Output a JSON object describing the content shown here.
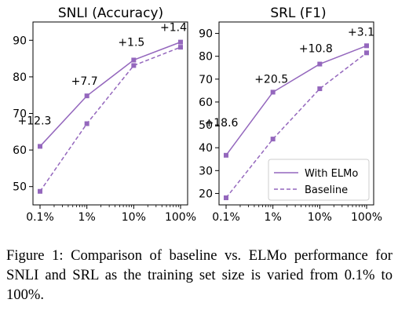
{
  "chart_data": [
    {
      "type": "line",
      "title": "SNLI (Accuracy)",
      "xlabel": "",
      "ylabel": "",
      "x_scale": "log",
      "x": [
        0.1,
        1,
        10,
        100
      ],
      "xticklabels": [
        "0.1%",
        "1%",
        "10%",
        "100%"
      ],
      "ylim": [
        45,
        95
      ],
      "yticks": [
        50,
        60,
        70,
        80,
        90
      ],
      "series": [
        {
          "name": "With ELMo",
          "style": "solid",
          "values": [
            61.0,
            74.8,
            84.6,
            89.5
          ]
        },
        {
          "name": "Baseline",
          "style": "dashed",
          "values": [
            48.7,
            67.2,
            83.1,
            88.1
          ]
        }
      ],
      "annotations": [
        "+12.3",
        "+7.7",
        "+1.5",
        "+1.4"
      ],
      "color": "#9467bd",
      "grid": false
    },
    {
      "type": "line",
      "title": "SRL (F1)",
      "xlabel": "",
      "ylabel": "",
      "x_scale": "log",
      "x": [
        0.1,
        1,
        10,
        100
      ],
      "xticklabels": [
        "0.1%",
        "1%",
        "10%",
        "100%"
      ],
      "ylim": [
        15,
        95
      ],
      "yticks": [
        20,
        30,
        40,
        50,
        60,
        70,
        80,
        90
      ],
      "series": [
        {
          "name": "With ELMo",
          "style": "solid",
          "values": [
            36.7,
            64.3,
            76.6,
            84.6
          ]
        },
        {
          "name": "Baseline",
          "style": "dashed",
          "values": [
            18.1,
            43.8,
            65.8,
            81.5
          ]
        }
      ],
      "annotations": [
        "+18.6",
        "+20.5",
        "+10.8",
        "+3.1"
      ],
      "legend": {
        "position": "bottom-right",
        "entries": [
          "With ELMo",
          "Baseline"
        ]
      },
      "color": "#9467bd",
      "grid": false
    }
  ],
  "caption": "Figure 1: Comparison of baseline vs. ELMo performance for SNLI and SRL as the training set size is varied from 0.1% to 100%."
}
